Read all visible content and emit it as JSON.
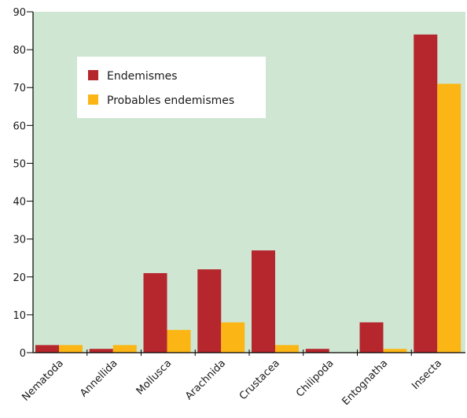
{
  "chart_data": {
    "type": "bar",
    "categories": [
      "Nematoda",
      "Annellida",
      "Mollusca",
      "Arachnida",
      "Crustacea",
      "Chilipoda",
      "Entognatha",
      "Insecta"
    ],
    "series": [
      {
        "name": "Endemismes",
        "color": "#b5262d",
        "values": [
          2,
          1,
          21,
          22,
          27,
          1,
          8,
          84
        ]
      },
      {
        "name": "Probables endemismes",
        "color": "#fbb615",
        "values": [
          2,
          2,
          6,
          8,
          2,
          0,
          1,
          71
        ]
      }
    ],
    "ylim": [
      0,
      90
    ],
    "yticks": [
      0,
      10,
      20,
      30,
      40,
      50,
      60,
      70,
      80,
      90
    ],
    "grid": false,
    "legend_position": "upper-left",
    "colors": {
      "plot_background": "#cfe6d3",
      "legend_background": "#ffffff",
      "axis": "#000000"
    }
  }
}
